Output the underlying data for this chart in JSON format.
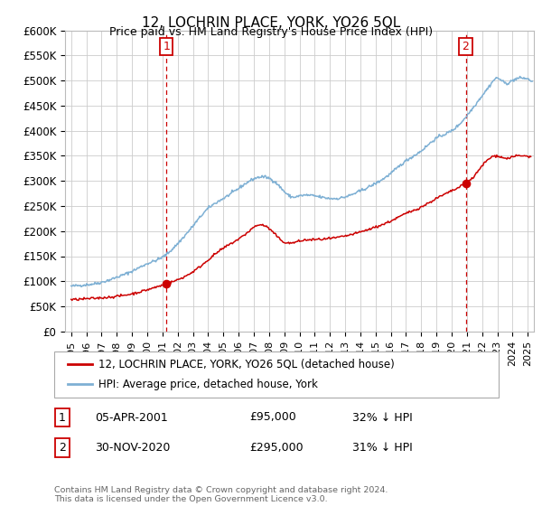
{
  "title": "12, LOCHRIN PLACE, YORK, YO26 5QL",
  "subtitle": "Price paid vs. HM Land Registry's House Price Index (HPI)",
  "ylabel_ticks": [
    "£0",
    "£50K",
    "£100K",
    "£150K",
    "£200K",
    "£250K",
    "£300K",
    "£350K",
    "£400K",
    "£450K",
    "£500K",
    "£550K",
    "£600K"
  ],
  "ylim": [
    0,
    600000
  ],
  "ytick_vals": [
    0,
    50000,
    100000,
    150000,
    200000,
    250000,
    300000,
    350000,
    400000,
    450000,
    500000,
    550000,
    600000
  ],
  "xlim_start": 1994.6,
  "xlim_end": 2025.4,
  "red_color": "#cc0000",
  "blue_color": "#7eb0d4",
  "marker1_x": 2001.27,
  "marker1_y": 95000,
  "marker2_x": 2020.92,
  "marker2_y": 295000,
  "legend_label1": "12, LOCHRIN PLACE, YORK, YO26 5QL (detached house)",
  "legend_label2": "HPI: Average price, detached house, York",
  "annotation1": [
    "1",
    "05-APR-2001",
    "£95,000",
    "32% ↓ HPI"
  ],
  "annotation2": [
    "2",
    "30-NOV-2020",
    "£295,000",
    "31% ↓ HPI"
  ],
  "footer": "Contains HM Land Registry data © Crown copyright and database right 2024.\nThis data is licensed under the Open Government Licence v3.0.",
  "background_color": "#ffffff",
  "grid_color": "#cccccc"
}
